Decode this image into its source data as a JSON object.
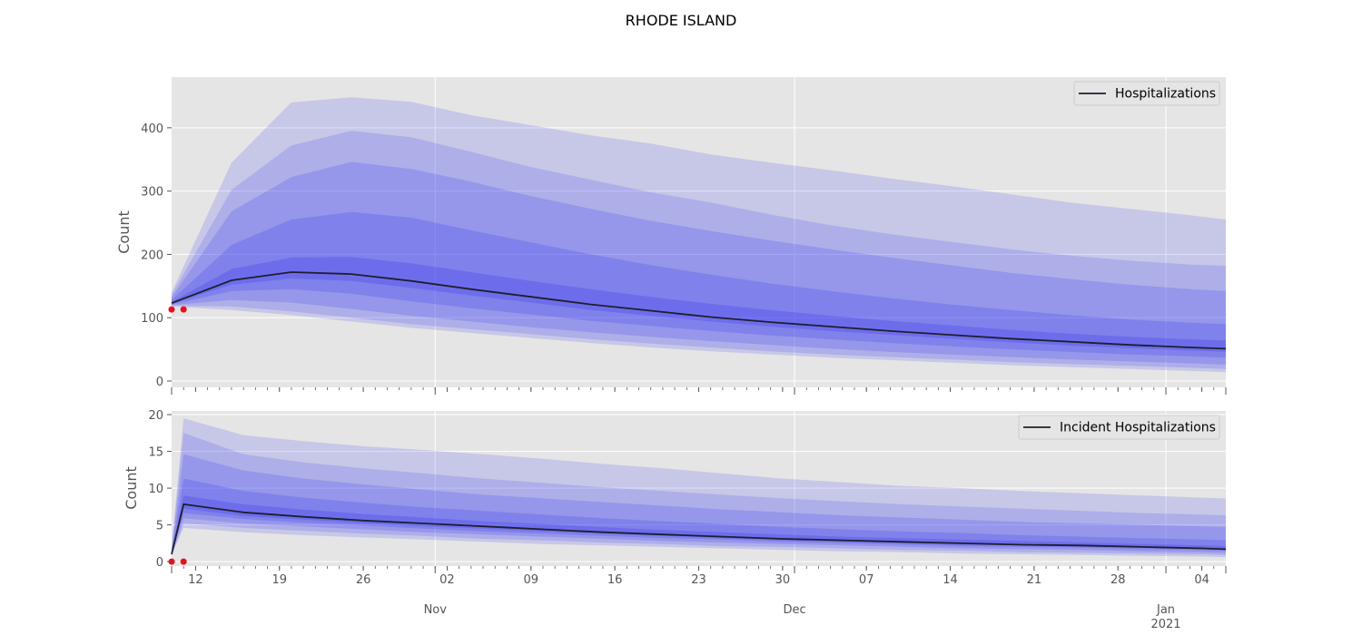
{
  "figure": {
    "title": "RHODE ISLAND"
  },
  "colors": {
    "band": "#2d2df0",
    "median": "#1f1f2e",
    "observed": "#e8111b",
    "panel_bg": "#e5e5e5",
    "grid": "#ffffff"
  },
  "x_axis": {
    "day_ticks": [
      "12",
      "19",
      "26",
      "02",
      "09",
      "16",
      "23",
      "30",
      "07",
      "14",
      "21",
      "28",
      "04"
    ],
    "month_labels": [
      "Nov",
      "Dec",
      "Jan\n2021"
    ]
  },
  "chart_data": [
    {
      "type": "area",
      "ylabel": "Count",
      "legend": {
        "label": "Hospitalizations",
        "position": "top-right"
      },
      "ylim": [
        -10,
        480
      ],
      "yticks": [
        "0",
        "100",
        "200",
        "300",
        "400"
      ],
      "xlim": [
        "2020-10-10",
        "2021-01-06"
      ],
      "x": [
        "2020-10-10",
        "2020-10-15",
        "2020-10-20",
        "2020-10-25",
        "2020-10-30",
        "2020-11-04",
        "2020-11-09",
        "2020-11-14",
        "2020-11-19",
        "2020-11-24",
        "2020-11-29",
        "2020-12-04",
        "2020-12-09",
        "2020-12-14",
        "2020-12-19",
        "2020-12-24",
        "2020-12-29",
        "2021-01-03",
        "2021-01-06"
      ],
      "median": [
        123,
        159,
        172,
        169,
        158,
        145,
        133,
        121,
        111,
        101,
        93,
        86,
        79,
        73,
        67,
        62,
        57,
        53,
        51
      ],
      "bands": [
        {
          "level": 0.95,
          "lower": [
            118,
            112,
            104,
            94,
            84,
            76,
            68,
            60,
            53,
            47,
            42,
            37,
            33,
            29,
            25,
            22,
            19,
            16,
            14
          ],
          "upper": [
            140,
            345,
            440,
            448,
            441,
            420,
            404,
            388,
            375,
            358,
            345,
            333,
            320,
            308,
            295,
            282,
            272,
            262,
            255
          ]
        },
        {
          "level": 0.9,
          "lower": [
            119,
            118,
            110,
            100,
            90,
            82,
            74,
            66,
            59,
            53,
            47,
            42,
            38,
            34,
            30,
            27,
            24,
            21,
            19
          ],
          "upper": [
            136,
            302,
            372,
            395,
            385,
            362,
            338,
            318,
            298,
            282,
            263,
            246,
            232,
            220,
            208,
            198,
            190,
            184,
            182
          ]
        },
        {
          "level": 0.8,
          "lower": [
            120,
            128,
            124,
            114,
            103,
            94,
            85,
            77,
            70,
            63,
            57,
            51,
            46,
            42,
            38,
            34,
            31,
            28,
            26
          ],
          "upper": [
            132,
            268,
            322,
            346,
            335,
            315,
            292,
            272,
            253,
            237,
            222,
            208,
            195,
            183,
            171,
            161,
            152,
            145,
            142
          ]
        },
        {
          "level": 0.6,
          "lower": [
            121,
            142,
            145,
            138,
            126,
            115,
            105,
            95,
            87,
            79,
            72,
            66,
            60,
            55,
            50,
            46,
            42,
            39,
            37
          ],
          "upper": [
            128,
            215,
            255,
            267,
            258,
            238,
            219,
            200,
            183,
            168,
            154,
            142,
            131,
            121,
            112,
            104,
            97,
            92,
            90
          ]
        },
        {
          "level": 0.3,
          "lower": [
            122,
            152,
            162,
            158,
            147,
            135,
            124,
            112,
            103,
            94,
            86,
            79,
            73,
            67,
            61,
            56,
            52,
            48,
            46
          ],
          "upper": [
            125,
            177,
            195,
            196,
            186,
            172,
            158,
            145,
            133,
            122,
            112,
            103,
            95,
            88,
            81,
            75,
            70,
            66,
            64
          ]
        }
      ],
      "observed": {
        "x": [
          "2020-10-10",
          "2020-10-11"
        ],
        "y": [
          113,
          113
        ]
      }
    },
    {
      "type": "area",
      "ylabel": "Count",
      "legend": {
        "label": "Incident Hospitalizations",
        "position": "top-right"
      },
      "ylim": [
        -0.6,
        20.5
      ],
      "yticks": [
        "0",
        "5",
        "10",
        "15",
        "20"
      ],
      "xlim": [
        "2020-10-10",
        "2021-01-06"
      ],
      "x": [
        "2020-10-10",
        "2020-10-11",
        "2020-10-16",
        "2020-10-21",
        "2020-10-26",
        "2020-10-31",
        "2020-11-05",
        "2020-11-10",
        "2020-11-15",
        "2020-11-20",
        "2020-11-25",
        "2020-11-30",
        "2020-12-05",
        "2020-12-10",
        "2020-12-15",
        "2020-12-20",
        "2020-12-25",
        "2020-12-30",
        "2021-01-04",
        "2021-01-06"
      ],
      "median": [
        1.0,
        7.8,
        6.7,
        6.1,
        5.6,
        5.2,
        4.8,
        4.4,
        4.0,
        3.7,
        3.4,
        3.1,
        2.9,
        2.7,
        2.5,
        2.3,
        2.2,
        2.0,
        1.8,
        1.7
      ],
      "bands": [
        {
          "level": 0.95,
          "lower": [
            0.9,
            4.6,
            4.0,
            3.6,
            3.3,
            3.0,
            2.7,
            2.4,
            2.2,
            2.0,
            1.8,
            1.6,
            1.4,
            1.3,
            1.1,
            1.0,
            0.9,
            0.8,
            0.7,
            0.6
          ],
          "upper": [
            2.0,
            19.5,
            17.2,
            16.4,
            15.7,
            15.2,
            14.6,
            14.0,
            13.3,
            12.7,
            12.0,
            11.3,
            10.8,
            10.3,
            10.0,
            9.6,
            9.3,
            9.0,
            8.7,
            8.6
          ]
        },
        {
          "level": 0.9,
          "lower": [
            0.9,
            5.2,
            4.6,
            4.2,
            3.8,
            3.5,
            3.1,
            2.9,
            2.6,
            2.4,
            2.1,
            2.0,
            1.8,
            1.6,
            1.5,
            1.3,
            1.2,
            1.1,
            1.0,
            0.9
          ],
          "upper": [
            1.8,
            17.5,
            14.6,
            13.5,
            12.7,
            12.0,
            11.3,
            10.7,
            10.1,
            9.6,
            9.1,
            8.6,
            8.2,
            7.8,
            7.5,
            7.2,
            6.9,
            6.6,
            6.4,
            6.3
          ]
        },
        {
          "level": 0.8,
          "lower": [
            0.9,
            5.9,
            5.2,
            4.8,
            4.4,
            4.0,
            3.7,
            3.4,
            3.1,
            2.8,
            2.6,
            2.4,
            2.2,
            2.0,
            1.8,
            1.7,
            1.6,
            1.4,
            1.3,
            1.2
          ],
          "upper": [
            1.5,
            14.6,
            12.4,
            11.3,
            10.5,
            9.8,
            9.1,
            8.6,
            8.1,
            7.6,
            7.1,
            6.7,
            6.3,
            6.0,
            5.7,
            5.4,
            5.2,
            5.0,
            4.8,
            4.7
          ]
        },
        {
          "level": 0.6,
          "lower": [
            0.9,
            6.6,
            5.8,
            5.3,
            4.9,
            4.5,
            4.1,
            3.8,
            3.5,
            3.2,
            3.0,
            2.7,
            2.5,
            2.3,
            2.1,
            2.0,
            1.9,
            1.7,
            1.6,
            1.5
          ],
          "upper": [
            1.3,
            11.3,
            9.6,
            8.7,
            8.0,
            7.4,
            6.9,
            6.4,
            5.9,
            5.5,
            5.1,
            4.7,
            4.4,
            4.1,
            3.9,
            3.6,
            3.4,
            3.2,
            3.0,
            2.9
          ]
        },
        {
          "level": 0.3,
          "lower": [
            1.0,
            7.2,
            6.2,
            5.7,
            5.2,
            4.8,
            4.5,
            4.1,
            3.8,
            3.5,
            3.2,
            2.9,
            2.7,
            2.5,
            2.3,
            2.2,
            2.0,
            1.9,
            1.7,
            1.6
          ],
          "upper": [
            1.1,
            9.0,
            7.8,
            7.1,
            6.5,
            6.0,
            5.5,
            5.1,
            4.7,
            4.3,
            4.0,
            3.7,
            3.4,
            3.2,
            3.0,
            2.8,
            2.6,
            2.4,
            2.2,
            2.1
          ]
        }
      ],
      "observed": {
        "x": [
          "2020-10-10",
          "2020-10-11"
        ],
        "y": [
          0,
          0
        ]
      }
    }
  ]
}
